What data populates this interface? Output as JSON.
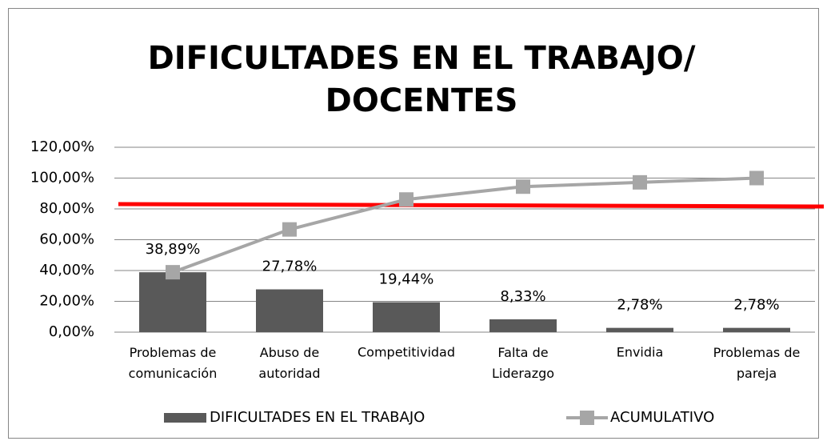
{
  "chart_data": {
    "type": "pareto",
    "title": "DIFICULTADES EN EL TRABAJO/\nDOCENTES",
    "categories": [
      "Problemas de\ncomunicación",
      "Abuso de\nautoridad",
      "Competitividad",
      "Falta de\nLiderazgo",
      "Envidia",
      "Problemas de\npareja"
    ],
    "series": [
      {
        "name": "DIFICULTADES EN EL TRABAJO",
        "color": "#595959",
        "values": [
          38.89,
          27.78,
          19.44,
          8.33,
          2.78,
          2.78
        ],
        "value_labels": [
          "38,89%",
          "27,78%",
          "19,44%",
          "8,33%",
          "2,78%",
          "2,78%"
        ]
      },
      {
        "name": "ACUMULATIVO",
        "color": "#a6a6a6",
        "values": [
          38.89,
          66.67,
          86.11,
          94.44,
          97.22,
          100
        ]
      }
    ],
    "ylim": [
      0,
      120
    ],
    "yticks": [
      {
        "value": 0,
        "label": "0,00%"
      },
      {
        "value": 20,
        "label": "20,00%"
      },
      {
        "value": 40,
        "label": "40,00%"
      },
      {
        "value": 60,
        "label": "60,00%"
      },
      {
        "value": 80,
        "label": "80,00%"
      },
      {
        "value": 100,
        "label": "100,00%"
      },
      {
        "value": 120,
        "label": "120,00%"
      }
    ],
    "grid": true,
    "legend": "bottom"
  }
}
